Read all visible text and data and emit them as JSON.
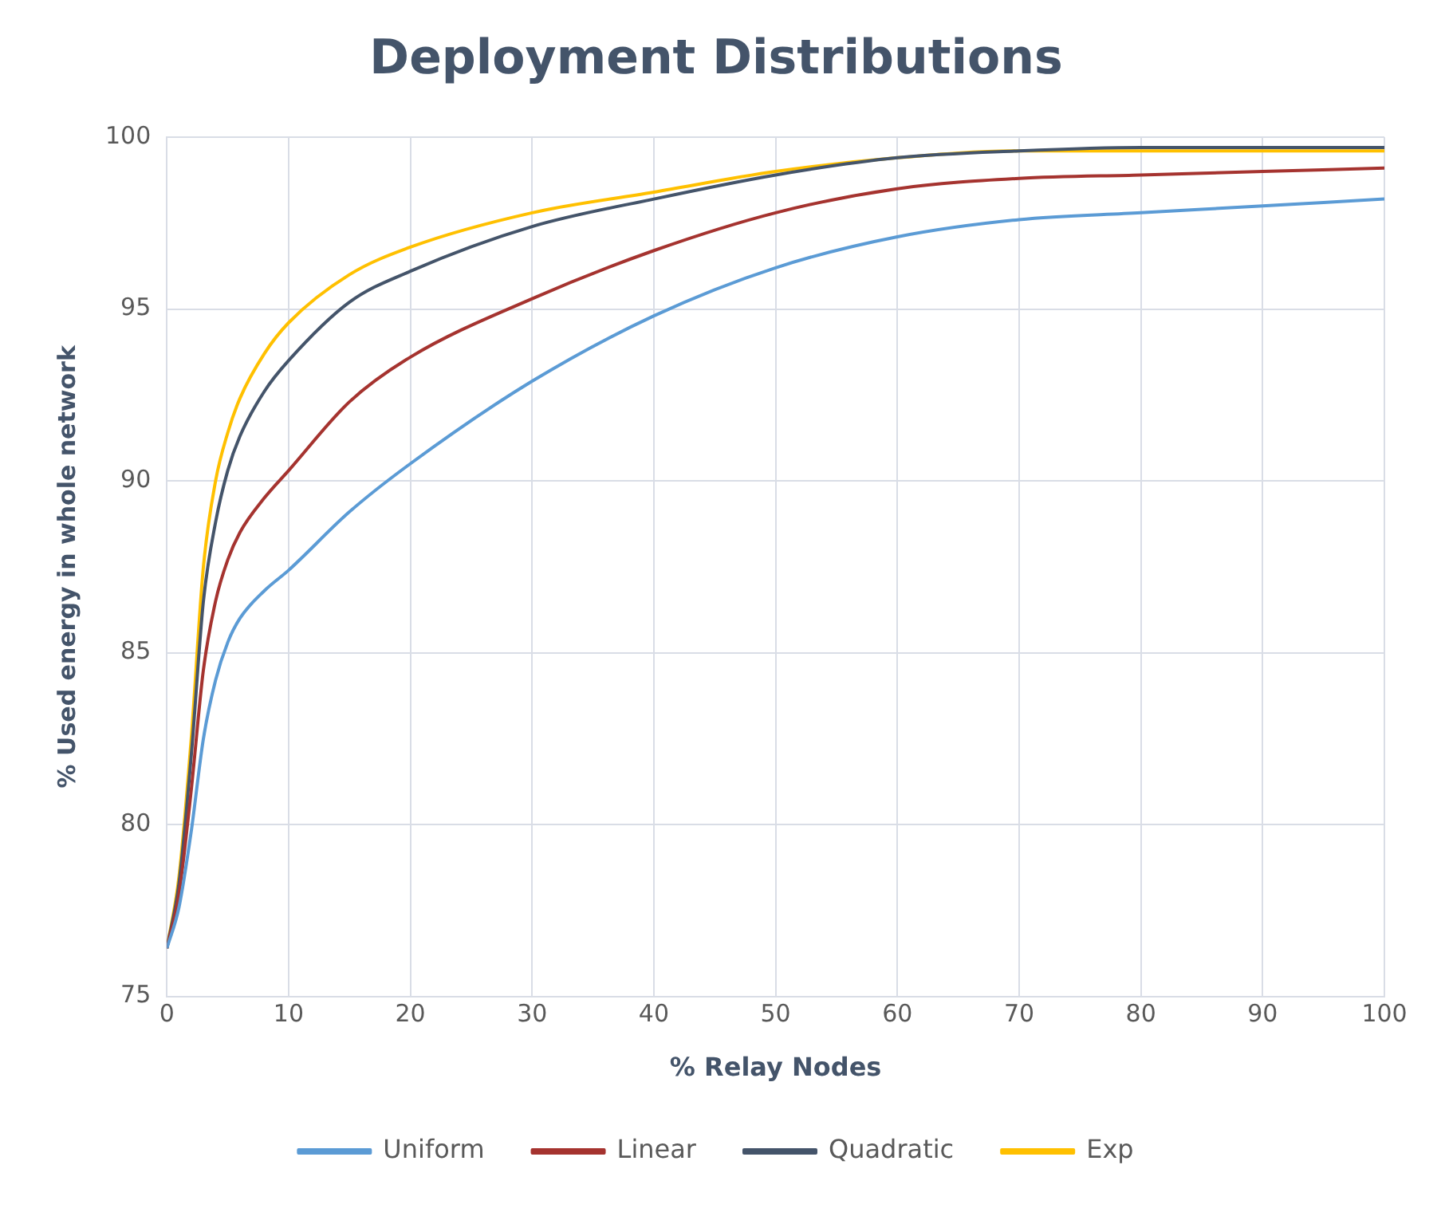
{
  "chart_data": {
    "type": "line",
    "title": "Deployment Distributions",
    "xlabel": "% Relay Nodes",
    "ylabel": "% Used energy in whole network",
    "x": [
      0,
      1,
      2,
      3,
      4,
      5,
      6,
      8,
      10,
      15,
      20,
      30,
      40,
      50,
      60,
      70,
      80,
      90,
      100
    ],
    "series": [
      {
        "name": "Uniform",
        "color": "#5b9bd5",
        "values": [
          76.4,
          77.6,
          79.8,
          82.5,
          84.2,
          85.3,
          86.0,
          86.8,
          87.4,
          89.1,
          90.5,
          92.9,
          94.8,
          96.2,
          97.1,
          97.6,
          97.8,
          98.0,
          98.2
        ]
      },
      {
        "name": "Linear",
        "color": "#a5332f",
        "values": [
          76.4,
          78.0,
          81.0,
          84.5,
          86.5,
          87.7,
          88.5,
          89.5,
          90.3,
          92.3,
          93.6,
          95.3,
          96.7,
          97.8,
          98.5,
          98.8,
          98.9,
          99.0,
          99.1
        ]
      },
      {
        "name": "Quadratic",
        "color": "#44546a",
        "values": [
          76.4,
          78.3,
          82.0,
          86.5,
          88.8,
          90.3,
          91.3,
          92.6,
          93.5,
          95.2,
          96.1,
          97.4,
          98.2,
          98.9,
          99.4,
          99.6,
          99.7,
          99.7,
          99.7
        ]
      },
      {
        "name": "Exp",
        "color": "#ffc000",
        "values": [
          76.4,
          78.5,
          82.5,
          87.5,
          90.0,
          91.4,
          92.4,
          93.7,
          94.6,
          96.0,
          96.8,
          97.8,
          98.4,
          99.0,
          99.4,
          99.6,
          99.6,
          99.6,
          99.6
        ]
      }
    ],
    "xlim": [
      0,
      100
    ],
    "xticks": [
      0,
      10,
      20,
      30,
      40,
      50,
      60,
      70,
      80,
      90,
      100
    ],
    "ylim": [
      75,
      100
    ],
    "yticks": [
      75,
      80,
      85,
      90,
      95,
      100
    ],
    "grid": true,
    "legend": "bottom",
    "marker": "none",
    "line_style": "solid"
  }
}
